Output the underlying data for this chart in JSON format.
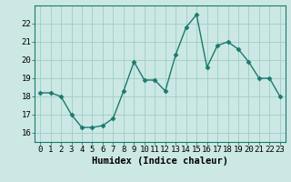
{
  "x": [
    0,
    1,
    2,
    3,
    4,
    5,
    6,
    7,
    8,
    9,
    10,
    11,
    12,
    13,
    14,
    15,
    16,
    17,
    18,
    19,
    20,
    21,
    22,
    23
  ],
  "y": [
    18.2,
    18.2,
    18.0,
    17.0,
    16.3,
    16.3,
    16.4,
    16.8,
    18.3,
    19.9,
    18.9,
    18.9,
    18.3,
    20.3,
    21.8,
    22.5,
    19.6,
    20.8,
    21.0,
    20.6,
    19.9,
    19.0,
    19.0,
    18.0
  ],
  "line_color": "#1a7a6e",
  "marker": "D",
  "marker_size": 2.5,
  "bg_color": "#cce8e4",
  "grid_color": "#a0ccc8",
  "xlabel": "Humidex (Indice chaleur)",
  "xlim": [
    -0.5,
    23.5
  ],
  "ylim": [
    15.5,
    23.0
  ],
  "yticks": [
    16,
    17,
    18,
    19,
    20,
    21,
    22
  ],
  "xticks": [
    0,
    1,
    2,
    3,
    4,
    5,
    6,
    7,
    8,
    9,
    10,
    11,
    12,
    13,
    14,
    15,
    16,
    17,
    18,
    19,
    20,
    21,
    22,
    23
  ],
  "xlabel_fontsize": 7.5,
  "tick_fontsize": 6.5,
  "line_width": 1.0
}
